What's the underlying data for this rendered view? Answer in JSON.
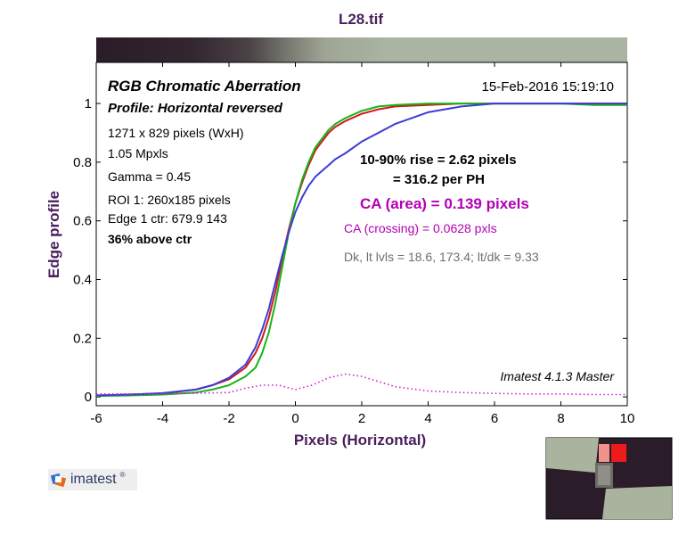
{
  "chart_data": {
    "type": "line",
    "title": "L28.tif",
    "xlabel": "Pixels (Horizontal)",
    "ylabel": "Edge profile",
    "xlim": [
      -6,
      10
    ],
    "ylim": [
      -0.03,
      1.14
    ],
    "x_ticks": [
      "-6",
      "-4",
      "-2",
      "0",
      "2",
      "4",
      "6",
      "8",
      "10"
    ],
    "y_ticks": [
      "0",
      "0.2",
      "0.4",
      "0.6",
      "0.8",
      "1"
    ],
    "grid": false,
    "series": [
      {
        "name": "Red",
        "color": "#d11a1a",
        "x": [
          -6,
          -5,
          -4,
          -3,
          -2.5,
          -2,
          -1.5,
          -1.2,
          -1,
          -0.8,
          -0.6,
          -0.4,
          -0.2,
          0,
          0.2,
          0.4,
          0.6,
          0.8,
          1,
          1.2,
          1.5,
          2,
          2.5,
          3,
          4,
          5,
          6,
          7,
          8,
          9,
          10
        ],
        "y": [
          0.005,
          0.008,
          0.012,
          0.025,
          0.04,
          0.06,
          0.1,
          0.15,
          0.2,
          0.27,
          0.36,
          0.47,
          0.57,
          0.66,
          0.73,
          0.79,
          0.84,
          0.87,
          0.9,
          0.92,
          0.94,
          0.965,
          0.98,
          0.99,
          0.995,
          1.0,
          1.0,
          1.0,
          1.0,
          1.0,
          1.0
        ]
      },
      {
        "name": "Green",
        "color": "#17b317",
        "x": [
          -6,
          -5,
          -4,
          -3,
          -2.5,
          -2,
          -1.5,
          -1.2,
          -1,
          -0.8,
          -0.6,
          -0.4,
          -0.2,
          0,
          0.2,
          0.4,
          0.6,
          0.8,
          1,
          1.2,
          1.5,
          2,
          2.5,
          3,
          4,
          5,
          6,
          7,
          8,
          9,
          10
        ],
        "y": [
          0.003,
          0.005,
          0.008,
          0.015,
          0.025,
          0.04,
          0.07,
          0.1,
          0.15,
          0.22,
          0.32,
          0.44,
          0.56,
          0.66,
          0.74,
          0.8,
          0.85,
          0.88,
          0.91,
          0.93,
          0.95,
          0.975,
          0.99,
          0.995,
          1.0,
          1.0,
          1.0,
          1.0,
          1.0,
          0.995,
          0.995
        ]
      },
      {
        "name": "Blue",
        "color": "#3c3cd6",
        "x": [
          -6,
          -5,
          -4,
          -3,
          -2.5,
          -2,
          -1.5,
          -1.2,
          -1,
          -0.8,
          -0.6,
          -0.4,
          -0.2,
          0,
          0.2,
          0.4,
          0.6,
          0.8,
          1,
          1.2,
          1.5,
          2,
          2.5,
          3,
          4,
          5,
          6,
          7,
          8,
          9,
          10
        ],
        "y": [
          0.005,
          0.008,
          0.013,
          0.025,
          0.04,
          0.065,
          0.11,
          0.17,
          0.23,
          0.3,
          0.39,
          0.48,
          0.56,
          0.63,
          0.68,
          0.72,
          0.75,
          0.77,
          0.79,
          0.81,
          0.83,
          0.87,
          0.9,
          0.93,
          0.97,
          0.99,
          1.0,
          1.0,
          1.0,
          1.0,
          1.0
        ]
      },
      {
        "name": "CA difference",
        "color": "#d11ad1",
        "dotted": true,
        "x": [
          -6,
          -4,
          -2,
          -1.5,
          -1,
          -0.5,
          0,
          0.5,
          1,
          1.5,
          2,
          3,
          4,
          5,
          6,
          7,
          8,
          9,
          10
        ],
        "y": [
          0.01,
          0.01,
          0.015,
          0.03,
          0.04,
          0.04,
          0.025,
          0.04,
          0.065,
          0.078,
          0.07,
          0.035,
          0.02,
          0.015,
          0.012,
          0.01,
          0.01,
          0.008,
          0.008
        ]
      }
    ],
    "legend": "none",
    "header": {
      "title": "RGB Chromatic Aberration",
      "profile": "Profile: Horizontal reversed",
      "date": "15-Feb-2016 15:19:10"
    },
    "info_lines": [
      "1271 x 829 pixels (WxH)",
      "1.05 Mpxls",
      "Gamma = 0.45",
      "ROI 1: 260x185 pixels",
      "Edge 1 ctr: 679.9  143"
    ],
    "info_bold": "36% above ctr",
    "rise_line1": "10-90% rise = 2.62 pixels",
    "rise_line2": "= 316.2 per PH",
    "ca_area": "CA (area) = 0.139 pixels",
    "ca_crossing": "CA (crossing) = 0.0628 pxls",
    "levels": "Dk, lt lvls = 18.6, 173.4;  lt/dk = 9.33",
    "version": "Imatest 4.1.3  Master"
  },
  "colors": {
    "title": "#4a1f5c",
    "purple_text": "#b300b3",
    "gray_text": "#6e6e6e"
  },
  "logo_text": "imatest",
  "logo_reg": "®"
}
